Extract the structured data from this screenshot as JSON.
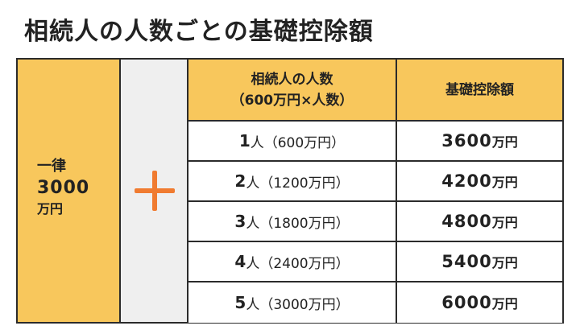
{
  "title": "相続人の人数ごとの基礎控除額",
  "base": {
    "label": "一律",
    "amount": "3000",
    "unit": "万円"
  },
  "plus_symbol": "+",
  "accent_color": "#f07b30",
  "header_color": "#f8c75c",
  "header": {
    "col1_line1": "相続人の人数",
    "col1_line2": "（600万円×人数）",
    "col2": "基礎控除額"
  },
  "rows": [
    {
      "people": "1",
      "people_unit": "人",
      "detail": "（600万円）",
      "deduction": "3600",
      "deduction_unit": "万円"
    },
    {
      "people": "2",
      "people_unit": "人",
      "detail": "（1200万円）",
      "deduction": "4200",
      "deduction_unit": "万円"
    },
    {
      "people": "3",
      "people_unit": "人",
      "detail": "（1800万円）",
      "deduction": "4800",
      "deduction_unit": "万円"
    },
    {
      "people": "4",
      "people_unit": "人",
      "detail": "（2400万円）",
      "deduction": "5400",
      "deduction_unit": "万円"
    },
    {
      "people": "5",
      "people_unit": "人",
      "detail": "（3000万円）",
      "deduction": "6000",
      "deduction_unit": "万円"
    }
  ]
}
